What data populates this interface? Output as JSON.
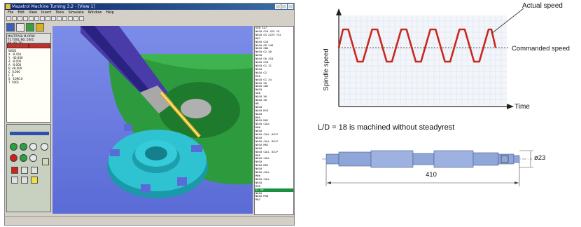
{
  "software": {
    "title": "Mazatrol Machine Turning 3.2 - [View 1]",
    "menu": [
      "File",
      "Edit",
      "View",
      "Insert",
      "Tools",
      "Simulate",
      "Window",
      "Help"
    ],
    "panel_header": [
      "MULTITASK M-OP08",
      "T1 TOOL NO. 5001",
      "X0, Y0, Z0"
    ],
    "axis_readout": [
      [
        "W001",
        ""
      ],
      [
        "X",
        "-0.450"
      ],
      [
        "Y",
        "-40.000"
      ],
      [
        "Z",
        "-0.000"
      ],
      [
        "A",
        "-0.000"
      ],
      [
        "B",
        "48.000"
      ],
      [
        "C",
        "0.000"
      ],
      [
        "F",
        "0"
      ],
      [
        "S",
        "-1090.0"
      ],
      [
        "T",
        "5001"
      ]
    ],
    "nc_code": [
      "G90 G17",
      "N010 G10 X25 Y0",
      "N010 G5 X225 Y22",
      "M07",
      "N010 G10",
      "N010 G8 X48",
      "N010 G80",
      "N010 G2 X0",
      "N010",
      "N010 G0 X10",
      "N010 G18",
      "N010 G1 Z1",
      "N010",
      "N010 G2",
      "M30",
      "N010 G1 X4",
      "N010 X0",
      "N010 G03",
      "N010",
      "G00",
      "N010 X0",
      "N010 X0",
      "M8",
      "N010",
      "N010 M15",
      "N010",
      "M05",
      "N010 M01",
      "N010 CALL",
      "M06",
      "N010",
      "N010 CALL OCLP",
      "N010",
      "N010 CALL OCLP",
      "N010 M01",
      "N010",
      "N010 CALL OCLP",
      "M05",
      "N010 CALL",
      "N010",
      "N010 M01",
      "N010",
      "N010 CALL",
      "M06",
      "N010 CALL",
      "N010",
      "M30",
      "G1 X0",
      "N010",
      "N010 M30",
      "M02"
    ],
    "selected_line_index": 47
  },
  "chart_data": {
    "type": "line",
    "title": "",
    "xlabel": "Time",
    "ylabel": "Spindle speed",
    "series": [
      {
        "name": "Actual speed",
        "kind": "trapezoid_wave",
        "cycles": 5,
        "color": "#c8281e"
      },
      {
        "name": "Commanded speed",
        "kind": "constant",
        "color": "#555555"
      }
    ],
    "legend": "annotations with leader lines, top-right",
    "grid": true
  },
  "shaft_diagram": {
    "caption": "L/D = 18 is machined without steadyrest",
    "length_label": "410",
    "diameter_label": "ø23",
    "color": "#8fa6d8"
  }
}
